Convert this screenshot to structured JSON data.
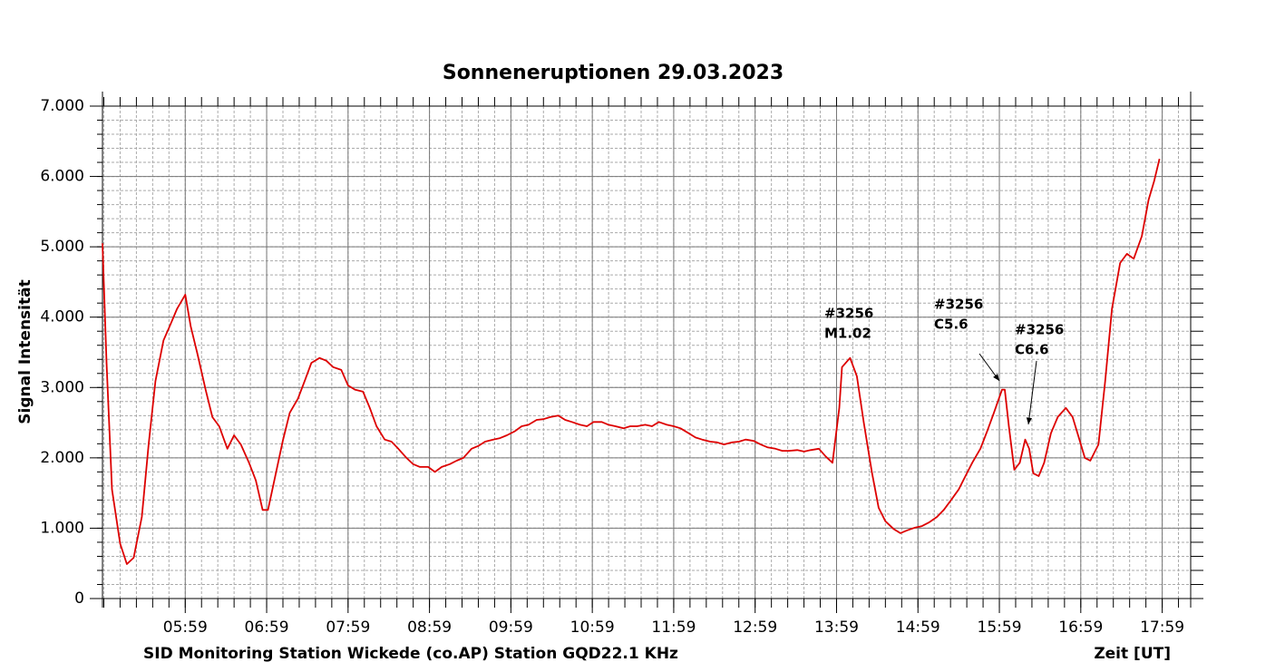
{
  "chart_data": {
    "type": "line",
    "title": "Sonneneruptionen 29.03.2023",
    "y_label": "Signal Intensität",
    "footer_left": "SID Monitoring Station Wickede (co.AP) Station GQD22.1 KHz",
    "x_label": "Zeit [UT]",
    "color": "#dd0000",
    "grid": true,
    "minor_divisions": 5,
    "xlim": [
      298,
      1100
    ],
    "xticks": [
      {
        "value": 359,
        "label": "05:59"
      },
      {
        "value": 419,
        "label": "06:59"
      },
      {
        "value": 479,
        "label": "07:59"
      },
      {
        "value": 539,
        "label": "08:59"
      },
      {
        "value": 599,
        "label": "09:59"
      },
      {
        "value": 659,
        "label": "10:59"
      },
      {
        "value": 719,
        "label": "11:59"
      },
      {
        "value": 779,
        "label": "12:59"
      },
      {
        "value": 839,
        "label": "13:59"
      },
      {
        "value": 899,
        "label": "14:59"
      },
      {
        "value": 959,
        "label": "15:59"
      },
      {
        "value": 1019,
        "label": "16:59"
      },
      {
        "value": 1079,
        "label": "17:59"
      }
    ],
    "ylim": [
      0,
      7000
    ],
    "yticks": [
      0,
      {
        "value": 1000,
        "label": "1.000"
      },
      {
        "value": 2000,
        "label": "2.000"
      },
      {
        "value": 3000,
        "label": "3.000"
      },
      {
        "value": 4000,
        "label": "4.000"
      },
      {
        "value": 5000,
        "label": "5.000"
      },
      {
        "value": 6000,
        "label": "6.000"
      },
      {
        "value": 7000,
        "label": "7.000"
      }
    ],
    "x": [
      298,
      301,
      305,
      311,
      316,
      321,
      327,
      332,
      337,
      343,
      348,
      353,
      359,
      363,
      368,
      374,
      379,
      384,
      390,
      395,
      400,
      406,
      411,
      416,
      420,
      426,
      431,
      436,
      442,
      447,
      452,
      458,
      463,
      468,
      474,
      479,
      484,
      490,
      495,
      500,
      506,
      511,
      516,
      522,
      527,
      532,
      538,
      543,
      548,
      554,
      559,
      564,
      570,
      575,
      580,
      586,
      591,
      596,
      602,
      607,
      612,
      618,
      623,
      628,
      634,
      639,
      644,
      650,
      655,
      660,
      666,
      671,
      676,
      682,
      687,
      692,
      698,
      703,
      708,
      714,
      719,
      724,
      730,
      735,
      740,
      746,
      751,
      756,
      762,
      767,
      772,
      778,
      783,
      788,
      794,
      799,
      804,
      810,
      815,
      820,
      826,
      831,
      836,
      841,
      843,
      849,
      854,
      859,
      865,
      870,
      875,
      881,
      886,
      891,
      897,
      902,
      907,
      913,
      918,
      923,
      929,
      934,
      939,
      945,
      950,
      955,
      961,
      963,
      966,
      970,
      974,
      978,
      981,
      984,
      988,
      992,
      997,
      1002,
      1008,
      1013,
      1018,
      1022,
      1026,
      1032,
      1037,
      1042,
      1048,
      1053,
      1058,
      1064,
      1069,
      1073,
      1077
    ],
    "values": [
      5050,
      3350,
      1550,
      780,
      490,
      580,
      1160,
      2190,
      3090,
      3670,
      3890,
      4120,
      4320,
      3870,
      3480,
      2970,
      2580,
      2450,
      2130,
      2320,
      2190,
      1930,
      1680,
      1260,
      1260,
      1800,
      2250,
      2640,
      2840,
      3090,
      3350,
      3420,
      3380,
      3290,
      3250,
      3030,
      2970,
      2940,
      2710,
      2450,
      2260,
      2230,
      2130,
      2000,
      1910,
      1870,
      1870,
      1800,
      1870,
      1910,
      1960,
      2000,
      2130,
      2170,
      2230,
      2260,
      2280,
      2320,
      2380,
      2450,
      2470,
      2540,
      2550,
      2580,
      2600,
      2540,
      2510,
      2470,
      2450,
      2510,
      2510,
      2470,
      2450,
      2420,
      2450,
      2450,
      2470,
      2450,
      2510,
      2470,
      2450,
      2420,
      2350,
      2290,
      2260,
      2230,
      2220,
      2190,
      2220,
      2230,
      2260,
      2240,
      2190,
      2150,
      2130,
      2100,
      2100,
      2110,
      2090,
      2110,
      2130,
      2020,
      1930,
      2710,
      3290,
      3420,
      3160,
      2510,
      1800,
      1290,
      1100,
      990,
      930,
      970,
      1010,
      1030,
      1080,
      1160,
      1260,
      1390,
      1550,
      1740,
      1930,
      2130,
      2380,
      2640,
      2970,
      2970,
      2450,
      1830,
      1930,
      2260,
      2130,
      1780,
      1740,
      1930,
      2350,
      2580,
      2710,
      2580,
      2260,
      2000,
      1960,
      2190,
      3090,
      4120,
      4770,
      4900,
      4830,
      5150,
      5670,
      5930,
      6250
    ],
    "annotations": [
      {
        "lines": [
          "#3256",
          "M1.02"
        ]
      },
      {
        "lines": [
          "#3256",
          "C5.6"
        ]
      },
      {
        "lines": [
          "#3256",
          "C6.6"
        ]
      }
    ]
  }
}
